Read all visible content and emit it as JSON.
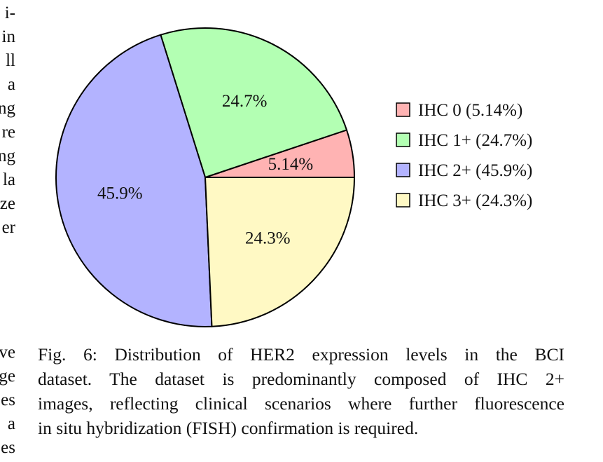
{
  "left_column_fragments": {
    "top": [
      "i-",
      "in",
      "ll",
      "a",
      "ng",
      "re",
      "ng",
      "la",
      "ze",
      "er"
    ],
    "bottom": [
      "ve",
      "ge",
      "es",
      "a",
      "es"
    ]
  },
  "chart_data": {
    "type": "pie",
    "slices": [
      {
        "label": "IHC 0 (5.14%)",
        "value": 5.14,
        "data_label": "5.14%",
        "color": "#ffb3b3"
      },
      {
        "label": "IHC 1+ (24.7%)",
        "value": 24.7,
        "data_label": "24.7%",
        "color": "#b3ffb3"
      },
      {
        "label": "IHC 2+ (45.9%)",
        "value": 45.9,
        "data_label": "45.9%",
        "color": "#b3b3ff"
      },
      {
        "label": "IHC 3+ (24.3%)",
        "value": 24.3,
        "data_label": "24.3%",
        "color": "#fff9c4"
      }
    ],
    "legend_position": "right",
    "start_angle_deg": 0,
    "direction": "counterclockwise"
  },
  "caption": {
    "lines": [
      "Fig. 6: Distribution of HER2 expression levels in the BCI",
      "dataset. The dataset is predominantly composed of IHC 2+",
      "images, reflecting clinical scenarios where further fluorescence",
      "in situ hybridization (FISH) confirmation is required."
    ]
  }
}
